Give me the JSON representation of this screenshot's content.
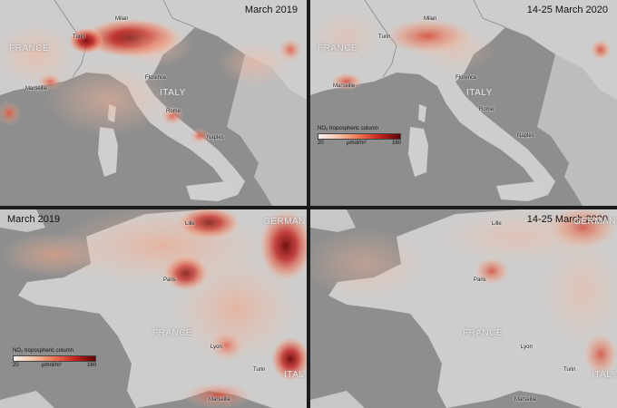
{
  "panels": [
    {
      "title": "March 2019",
      "labels": {
        "milan": "Milan",
        "turin": "Turin",
        "marseille": "Marseille",
        "florence": "Florence",
        "rome": "Rome",
        "naples": "Naples",
        "france": "FRANCE",
        "italy": "ITALY"
      }
    },
    {
      "title": "14-25 March 2020",
      "labels": {
        "milan": "Milan",
        "turin": "Turin",
        "marseille": "Marseille",
        "florence": "Florence",
        "rome": "Rome",
        "naples": "Naples",
        "france": "FRANCE",
        "italy": "ITALY"
      },
      "legend": {
        "title": "NO₂ tropospheric column",
        "min": "20",
        "unit": "μmol/m²",
        "max": "160"
      }
    },
    {
      "title": "March 2019",
      "labels": {
        "lille": "Lille",
        "paris": "Paris",
        "germany": "GERMANY",
        "france": "FRANCE",
        "lyon": "Lyon",
        "turin": "Turin",
        "italy": "ITALY",
        "marseille": "Marseille"
      },
      "legend": {
        "title": "NO₂ tropospheric column",
        "min": "20",
        "unit": "μmol/m²",
        "max": "160"
      }
    },
    {
      "title": "14-25 March 2020",
      "labels": {
        "lille": "Lille",
        "paris": "Paris",
        "germany": "GERMANY",
        "france": "FRANCE",
        "lyon": "Lyon",
        "turin": "Turin",
        "italy": "ITALY",
        "marseille": "Marseille"
      }
    }
  ],
  "colors": {
    "sea": "#8e8e8e",
    "land": "#cdcdcd",
    "pollution_low": "#f6c1a6",
    "pollution_high": "#b3151a",
    "pollution_peak": "#5c0405"
  }
}
